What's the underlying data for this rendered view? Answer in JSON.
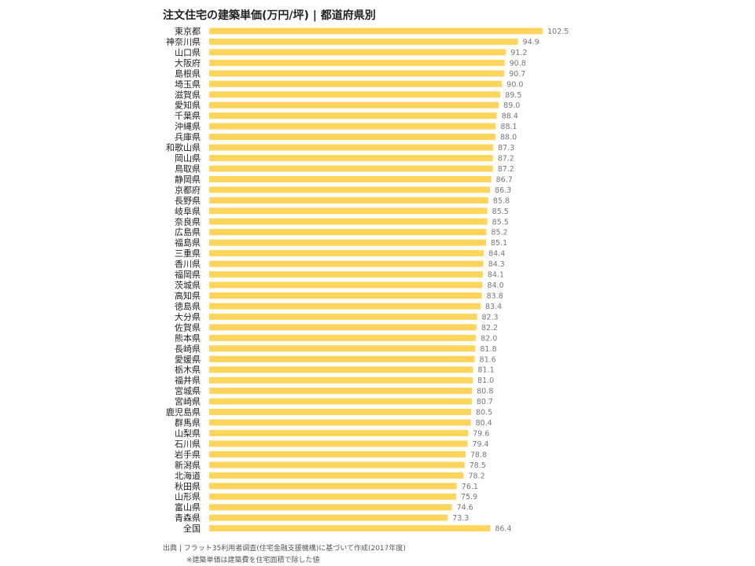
{
  "chart_data": {
    "type": "bar",
    "orientation": "horizontal",
    "title": "注文住宅の建築単価(万円/坪) | 都道府県別",
    "categories": [
      "東京都",
      "神奈川県",
      "山口県",
      "大阪府",
      "島根県",
      "埼玉県",
      "滋賀県",
      "愛知県",
      "千葉県",
      "沖縄県",
      "兵庫県",
      "和歌山県",
      "岡山県",
      "鳥取県",
      "静岡県",
      "京都府",
      "長野県",
      "岐阜県",
      "奈良県",
      "広島県",
      "福島県",
      "三重県",
      "香川県",
      "福岡県",
      "茨城県",
      "高知県",
      "徳島県",
      "大分県",
      "佐賀県",
      "熊本県",
      "長崎県",
      "愛媛県",
      "栃木県",
      "福井県",
      "宮城県",
      "宮崎県",
      "鹿児島県",
      "群馬県",
      "山梨県",
      "石川県",
      "岩手県",
      "新潟県",
      "北海道",
      "秋田県",
      "山形県",
      "富山県",
      "青森県",
      "全国"
    ],
    "values": [
      102.5,
      94.9,
      91.2,
      90.8,
      90.7,
      90.0,
      89.5,
      89.0,
      88.4,
      88.1,
      88.0,
      87.3,
      87.2,
      87.2,
      86.7,
      86.3,
      85.8,
      85.5,
      85.5,
      85.2,
      85.1,
      84.4,
      84.3,
      84.1,
      84.0,
      83.8,
      83.4,
      82.3,
      82.2,
      82.0,
      81.8,
      81.6,
      81.1,
      81.0,
      80.8,
      80.7,
      80.5,
      80.4,
      79.6,
      79.4,
      78.8,
      78.5,
      78.2,
      76.1,
      75.9,
      74.6,
      73.3,
      86.4
    ],
    "value_labels": [
      "102.5",
      "94.9",
      "91.2",
      "90.8",
      "90.7",
      "90.0",
      "89.5",
      "89.0",
      "88.4",
      "88.1",
      "88.0",
      "87.3",
      "87.2",
      "87.2",
      "86.7",
      "86.3",
      "85.8",
      "85.5",
      "85.5",
      "85.2",
      "85.1",
      "84.4",
      "84.3",
      "84.1",
      "84.0",
      "83.8",
      "83.4",
      "82.3",
      "82.2",
      "82.0",
      "81.8",
      "81.6",
      "81.1",
      "81.0",
      "80.8",
      "80.7",
      "80.5",
      "80.4",
      "79.6",
      "79.4",
      "78.8",
      "78.5",
      "78.2",
      "76.1",
      "75.9",
      "74.6",
      "73.3",
      "86.4"
    ],
    "xlim": [
      0,
      102.5
    ],
    "grid": false,
    "legend": "none",
    "bar_color": "#fdd55c"
  },
  "source": "出典 | フラット35利用者調査(住宅金融支援機構)に基づいて作成(2017年度)",
  "footnote": "※建築単価は建築費を住宅面積で除した値"
}
